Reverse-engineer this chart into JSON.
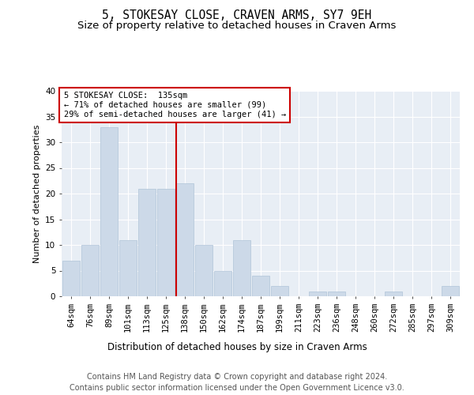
{
  "title": "5, STOKESAY CLOSE, CRAVEN ARMS, SY7 9EH",
  "subtitle": "Size of property relative to detached houses in Craven Arms",
  "xlabel": "Distribution of detached houses by size in Craven Arms",
  "ylabel": "Number of detached properties",
  "categories": [
    "64sqm",
    "76sqm",
    "89sqm",
    "101sqm",
    "113sqm",
    "125sqm",
    "138sqm",
    "150sqm",
    "162sqm",
    "174sqm",
    "187sqm",
    "199sqm",
    "211sqm",
    "223sqm",
    "236sqm",
    "248sqm",
    "260sqm",
    "272sqm",
    "285sqm",
    "297sqm",
    "309sqm"
  ],
  "values": [
    7,
    10,
    33,
    11,
    21,
    21,
    22,
    10,
    5,
    11,
    4,
    2,
    0,
    1,
    1,
    0,
    0,
    1,
    0,
    0,
    2
  ],
  "bar_color": "#ccd9e8",
  "bar_edge_color": "#b0c4d8",
  "vline_x_index": 6,
  "vline_color": "#cc0000",
  "annotation_title": "5 STOKESAY CLOSE:  135sqm",
  "annotation_line1": "← 71% of detached houses are smaller (99)",
  "annotation_line2": "29% of semi-detached houses are larger (41) →",
  "ylim": [
    0,
    40
  ],
  "yticks": [
    0,
    5,
    10,
    15,
    20,
    25,
    30,
    35,
    40
  ],
  "footer1": "Contains HM Land Registry data © Crown copyright and database right 2024.",
  "footer2": "Contains public sector information licensed under the Open Government Licence v3.0.",
  "bg_color": "#ffffff",
  "plot_bg_color": "#e8eef5",
  "title_fontsize": 10.5,
  "subtitle_fontsize": 9.5,
  "xlabel_fontsize": 8.5,
  "ylabel_fontsize": 8,
  "tick_fontsize": 7.5,
  "footer_fontsize": 7,
  "annotation_fontsize": 7.5
}
